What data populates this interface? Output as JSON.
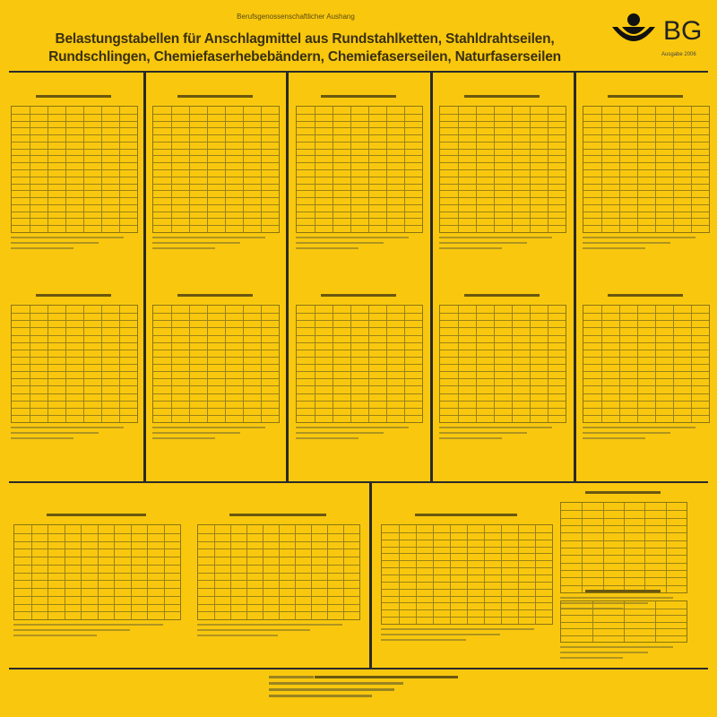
{
  "header": {
    "subtitle": "Berufsgenossenschaftlicher Aushang",
    "title_line1": "Belastungstabellen für Anschlagmittel aus Rundstahlketten, Stahldrahtseilen,",
    "title_line2": "Rundschlingen, Chemiefaserhebebändern, Chemiefaserseilen, Naturfaserseilen",
    "logo_text": "BG",
    "edition": "Ausgabe 2006"
  },
  "colors": {
    "background": "#f9c80e",
    "lines": "#2a2a2a"
  },
  "panels": {
    "top_row_count": 5,
    "bottom_row_count": 2
  }
}
